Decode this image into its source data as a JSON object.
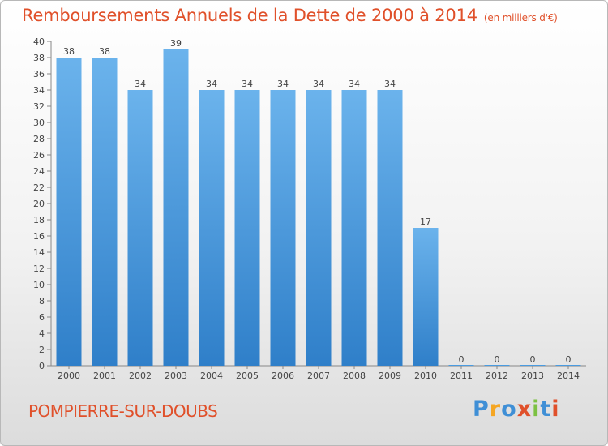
{
  "title": "Remboursements Annuels de la Dette de 2000 à 2014",
  "subtitle": "(en milliers d'€)",
  "commune": "POMPIERRE-SUR-DOUBS",
  "logo": {
    "letters": [
      "P",
      "r",
      "o",
      "x",
      "i",
      "t",
      "i"
    ],
    "colors": [
      "#3f8fd6",
      "#f5a623",
      "#3f8fd6",
      "#e0502a",
      "#7cc142",
      "#3f8fd6",
      "#e0502a"
    ]
  },
  "colors": {
    "bar": "#4a9be0",
    "bar_light": "#6bb3ec",
    "bar_dark": "#2f7fc9",
    "accent": "#e0502a"
  },
  "chart_data": {
    "type": "bar",
    "title": "Remboursements Annuels de la Dette de 2000 à 2014",
    "xlabel": "",
    "ylabel": "",
    "categories": [
      "2000",
      "2001",
      "2002",
      "2003",
      "2004",
      "2005",
      "2006",
      "2007",
      "2008",
      "2009",
      "2010",
      "2011",
      "2012",
      "2013",
      "2014"
    ],
    "values": [
      38,
      38,
      34,
      39,
      34,
      34,
      34,
      34,
      34,
      34,
      17,
      0,
      0,
      0,
      0
    ],
    "ylim": [
      0,
      40
    ],
    "yticks": [
      0,
      2,
      4,
      6,
      8,
      10,
      12,
      14,
      16,
      18,
      20,
      22,
      24,
      26,
      28,
      30,
      32,
      34,
      36,
      38,
      40
    ],
    "grid": false
  }
}
